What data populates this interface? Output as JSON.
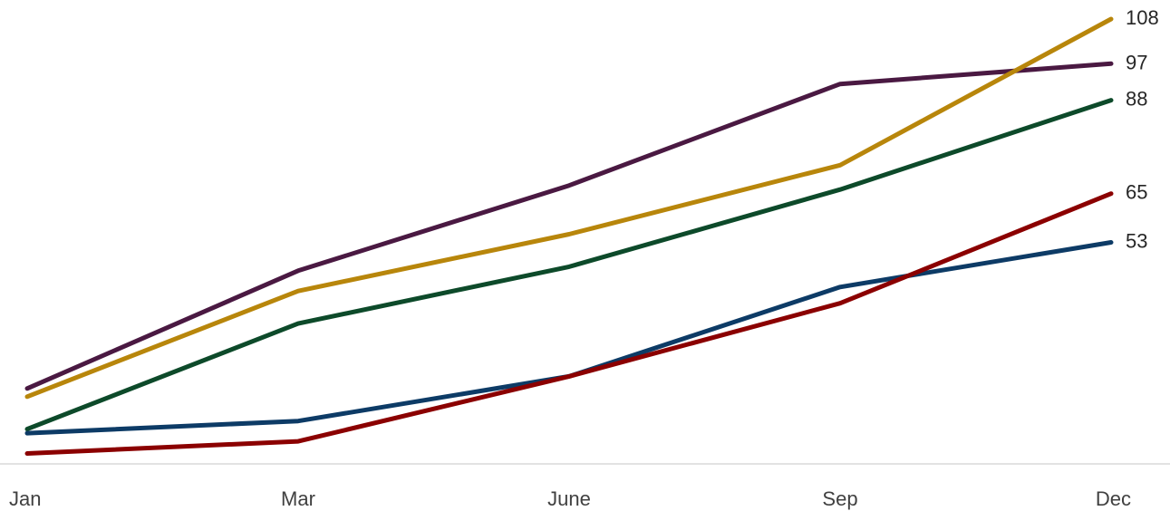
{
  "chart_data": {
    "type": "line",
    "categories": [
      "Jan",
      "Mar",
      "June",
      "Sep",
      "Dec"
    ],
    "ylim": [
      0,
      110
    ],
    "grid": false,
    "legend": "none",
    "series": [
      {
        "color": "#4a1942",
        "values": [
          17,
          46,
          67,
          92,
          97
        ]
      },
      {
        "color": "#b8860b",
        "values": [
          15,
          41,
          55,
          72,
          108
        ]
      },
      {
        "color": "#0d4a2a",
        "values": [
          7,
          33,
          47,
          66,
          88
        ]
      },
      {
        "color": "#0d3b66",
        "values": [
          6,
          9,
          20,
          42,
          53
        ]
      },
      {
        "color": "#8b0000",
        "values": [
          1,
          4,
          20,
          38,
          65
        ]
      }
    ],
    "end_labels": [
      "97",
      "108",
      "88",
      "53",
      "65"
    ]
  }
}
